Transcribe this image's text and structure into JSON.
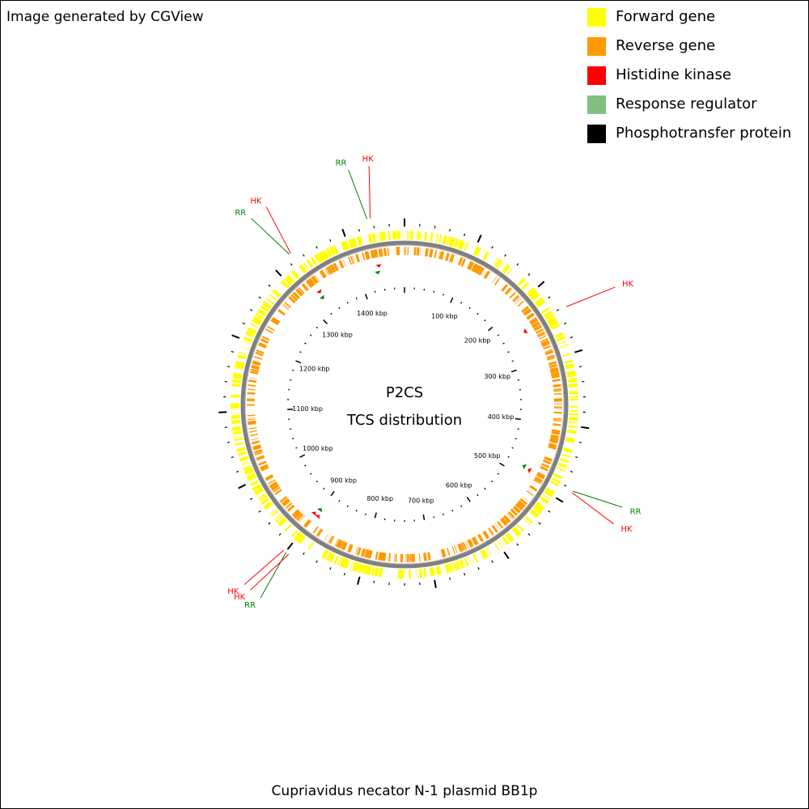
{
  "credit": "Image generated by CGView",
  "legend": [
    {
      "label": "Forward gene",
      "color": "#ffff00"
    },
    {
      "label": "Reverse gene",
      "color": "#ff9900"
    },
    {
      "label": "Histidine kinase",
      "color": "#ff0000"
    },
    {
      "label": "Response regulator",
      "color": "#80c080"
    },
    {
      "label": "Phosphotransfer protein",
      "color": "#000000"
    }
  ],
  "map": {
    "center_line1": "P2CS",
    "center_line2": "TCS distribution",
    "total_kbp": 1480,
    "tick_labels": [
      "100 kbp",
      "200 kbp",
      "300 kbp",
      "400 kbp",
      "500 kbp",
      "600 kbp",
      "700 kbp",
      "800 kbp",
      "900 kbp",
      "1000 kbp",
      "1100 kbp",
      "1200 kbp",
      "1300 kbp",
      "1400 kbp"
    ],
    "tick_label_values": [
      100,
      200,
      300,
      400,
      500,
      600,
      700,
      800,
      900,
      1000,
      1100,
      1200,
      1300,
      1400
    ],
    "colors": {
      "forward": "#ffff00",
      "reverse": "#ff9900",
      "backbone": "#808080",
      "hk_marker": "#ff0000",
      "rr_marker": "#008000",
      "hk_label": "#ff0000",
      "rr_label": "#008000"
    },
    "features": [
      {
        "type": "HK",
        "label": "HK",
        "pos_kbp": 1437
      },
      {
        "type": "RR",
        "label": "RR",
        "pos_kbp": 1433
      },
      {
        "type": "HK",
        "label": "HK",
        "pos_kbp": 1328
      },
      {
        "type": "RR",
        "label": "RR",
        "pos_kbp": 1326
      },
      {
        "type": "HK",
        "label": "HK",
        "pos_kbp": 242
      },
      {
        "type": "HK",
        "label": "HK",
        "pos_kbp": 484
      },
      {
        "type": "RR",
        "label": "RR",
        "pos_kbp": 482
      },
      {
        "type": "HK",
        "label": "HK",
        "pos_kbp": 903
      },
      {
        "type": "RR",
        "label": "RR",
        "pos_kbp": 899
      },
      {
        "type": "HK",
        "label": "HK",
        "pos_kbp": 895
      }
    ]
  },
  "footer": "Cupriavidus necator N-1 plasmid BB1p"
}
